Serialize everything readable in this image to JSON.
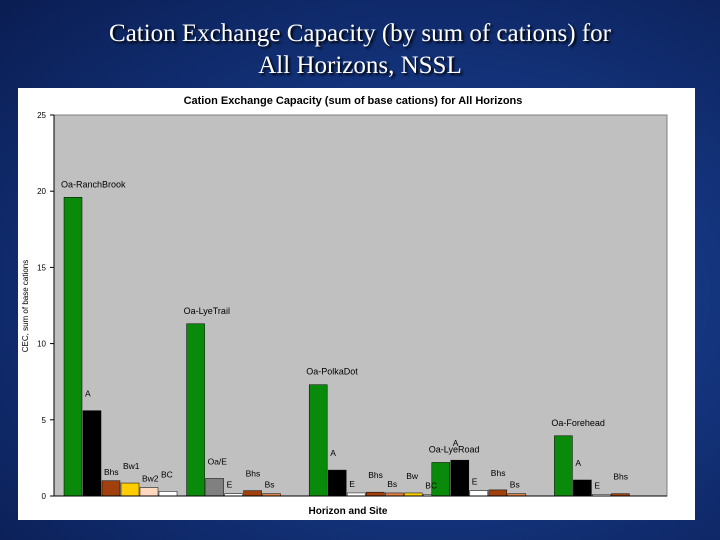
{
  "slide": {
    "title_line1": "Cation Exchange Capacity (by sum of cations) for",
    "title_line2": "All Horizons, NSSL"
  },
  "chart_data": {
    "type": "bar",
    "title": "Cation Exchange Capacity (sum of base cations) for All Horizons",
    "xlabel": "Horizon and Site",
    "ylabel": "CEC, sum of base cations",
    "ylim": [
      0,
      25
    ],
    "yticks": [
      0,
      5,
      10,
      15,
      20,
      25
    ],
    "grid": false,
    "plot_background": "#c0c0c0",
    "groups": [
      {
        "site": "Oa-RanchBrook",
        "bars": [
          {
            "label": "Oa-RanchBrook",
            "value": 19.6,
            "color": "#0a8a0a"
          },
          {
            "label": "A",
            "value": 5.6,
            "color": "#000000"
          },
          {
            "label": "Bhs",
            "value": 1.0,
            "color": "#a0400c"
          },
          {
            "label": "Bw1",
            "value": 0.85,
            "color": "#ffcc00"
          },
          {
            "label": "Bw2",
            "value": 0.55,
            "color": "#ffd8c0"
          },
          {
            "label": "BC",
            "value": 0.3,
            "color": "#ffffff"
          }
        ]
      },
      {
        "site": "Oa-LyeTrail",
        "bars": [
          {
            "label": "Oa-LyeTrail",
            "value": 11.3,
            "color": "#0a8a0a"
          },
          {
            "label": "Oa/E",
            "value": 1.15,
            "color": "#808080"
          },
          {
            "label": "E",
            "value": 0.15,
            "color": "#ffffff"
          },
          {
            "label": "Bhs",
            "value": 0.35,
            "color": "#a0400c"
          },
          {
            "label": "Bs",
            "value": 0.15,
            "color": "#e08040"
          }
        ]
      },
      {
        "site": "Oa-PolkaDot",
        "bars": [
          {
            "label": "Oa-PolkaDot",
            "value": 7.3,
            "color": "#0a8a0a"
          },
          {
            "label": "A",
            "value": 1.7,
            "color": "#000000"
          },
          {
            "label": "E",
            "value": 0.2,
            "color": "#ffffff"
          },
          {
            "label": "Bhs",
            "value": 0.25,
            "color": "#a0400c"
          },
          {
            "label": "Bs",
            "value": 0.2,
            "color": "#e08040"
          },
          {
            "label": "Bw",
            "value": 0.2,
            "color": "#ffcc00"
          },
          {
            "label": "BC",
            "value": 0.1,
            "color": "#ffffff"
          }
        ]
      },
      {
        "site": "Oa-LyeRoad",
        "bars": [
          {
            "label": "Oa-LyeRoad",
            "value": 2.2,
            "color": "#0a8a0a"
          },
          {
            "label": "A",
            "value": 2.35,
            "color": "#000000"
          },
          {
            "label": "E",
            "value": 0.35,
            "color": "#ffffff"
          },
          {
            "label": "Bhs",
            "value": 0.4,
            "color": "#a0400c"
          },
          {
            "label": "Bs",
            "value": 0.15,
            "color": "#e08040"
          }
        ]
      },
      {
        "site": "Oa-Forehead",
        "bars": [
          {
            "label": "Oa-Forehead",
            "value": 3.95,
            "color": "#0a8a0a"
          },
          {
            "label": "A",
            "value": 1.05,
            "color": "#000000"
          },
          {
            "label": "E",
            "value": 0.1,
            "color": "#ffffff"
          },
          {
            "label": "Bhs",
            "value": 0.15,
            "color": "#a0400c"
          }
        ]
      }
    ]
  }
}
